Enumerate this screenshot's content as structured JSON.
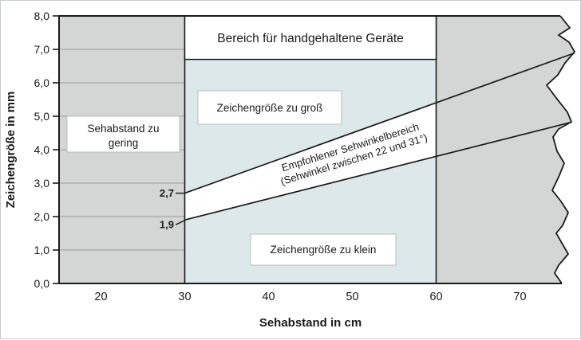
{
  "chart_data": {
    "type": "area",
    "title": "",
    "xlabel": "Sehabstand in cm",
    "ylabel": "Zeichengröße in mm",
    "xlim": [
      15,
      76.5
    ],
    "ylim": [
      0,
      8
    ],
    "x_ticks": [
      20,
      30,
      40,
      50,
      60,
      70
    ],
    "y_ticks": [
      0,
      1,
      2,
      3,
      4,
      5,
      6,
      7,
      8
    ],
    "y_tick_labels": [
      "0,0",
      "1,0",
      "2,0",
      "3,0",
      "4,0",
      "5,0",
      "6,0",
      "7,0",
      "8,0"
    ],
    "grid": "horizontal gridlines only inside left gray zone",
    "legend": "none",
    "zone_boundaries_cm": [
      30,
      60
    ],
    "handheld_area": {
      "label": "Bereich für handgehaltene Geräte",
      "x_range": [
        30,
        60
      ],
      "y_top": 8.0,
      "y_bottom": 6.7
    },
    "series": [
      {
        "name": "upper-limit-line",
        "x": [
          30,
          76.5
        ],
        "y": [
          2.7,
          6.89
        ],
        "value_label": "2,7"
      },
      {
        "name": "lower-limit-line",
        "x": [
          30,
          76.1
        ],
        "y": [
          1.9,
          4.82
        ],
        "value_label": "1,9"
      }
    ],
    "band_label": {
      "line1": "Empfohlener Sehwinkelbereich",
      "line2": "(Sehwinkel zwischen 22 und 31°)"
    },
    "zone_labels": {
      "too_close": {
        "line1": "Sehabstand zu",
        "line2": "gering"
      },
      "too_large": "Zeichengröße zu groß",
      "too_small": "Zeichengröße zu klein"
    },
    "colors": {
      "gray_zone": "#d4d5d5",
      "blue_zone": "#dce8e9",
      "band_fill": "#ffffff",
      "gridline": "#a9a9a9",
      "line": "#1a1a1a",
      "text": "#1a1a1a",
      "box_border_light": "#b8bcbd",
      "frame_border": "#c8cccc"
    }
  }
}
